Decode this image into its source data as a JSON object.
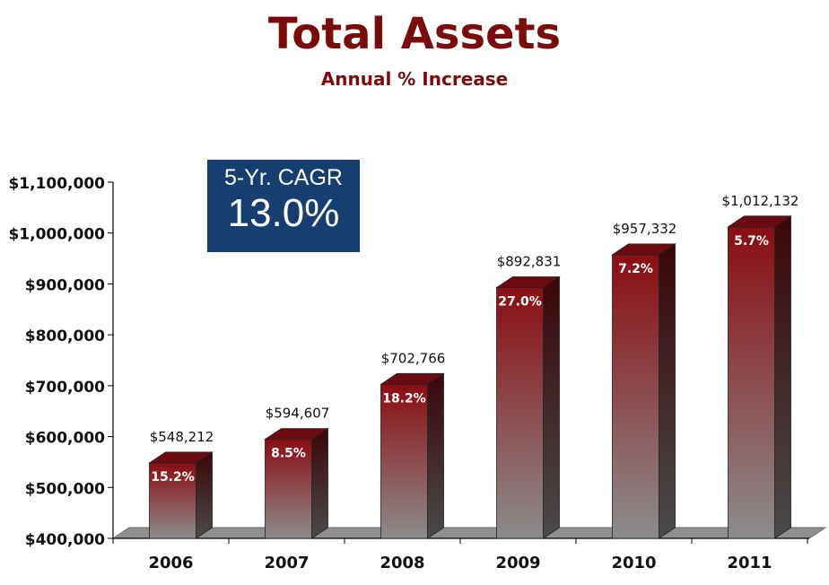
{
  "chart_data": {
    "type": "bar",
    "title": "Total Assets",
    "subtitle": "Annual % Increase",
    "categories": [
      "2006",
      "2007",
      "2008",
      "2009",
      "2010",
      "2011"
    ],
    "values": [
      548212,
      594607,
      702766,
      892831,
      957332,
      1012132
    ],
    "value_labels": [
      "$548,212",
      "$594,607",
      "$702,766",
      "$892,831",
      "$957,332",
      "$1,012,132"
    ],
    "pct_labels": [
      "15.2%",
      "8.5%",
      "18.2%",
      "27.0%",
      "7.2%",
      "5.7%"
    ],
    "ylim": [
      400000,
      1100000
    ],
    "yticks": [
      400000,
      500000,
      600000,
      700000,
      800000,
      900000,
      1000000,
      1100000
    ],
    "ytick_labels": [
      "$400,000",
      "$500,000",
      "$600,000",
      "$700,000",
      "$800,000",
      "$900,000",
      "$1,000,000",
      "$1,100,000"
    ],
    "xlabel": "",
    "ylabel": "",
    "grid": false,
    "colors": {
      "bar_top": "#8b0d12",
      "bar_bottom": "#8a8a8a",
      "side": "#3a2222",
      "cap": "#6b0a10"
    }
  },
  "callout": {
    "label": "5-Yr. CAGR",
    "value": "13.0%",
    "color": "#163e6e"
  }
}
